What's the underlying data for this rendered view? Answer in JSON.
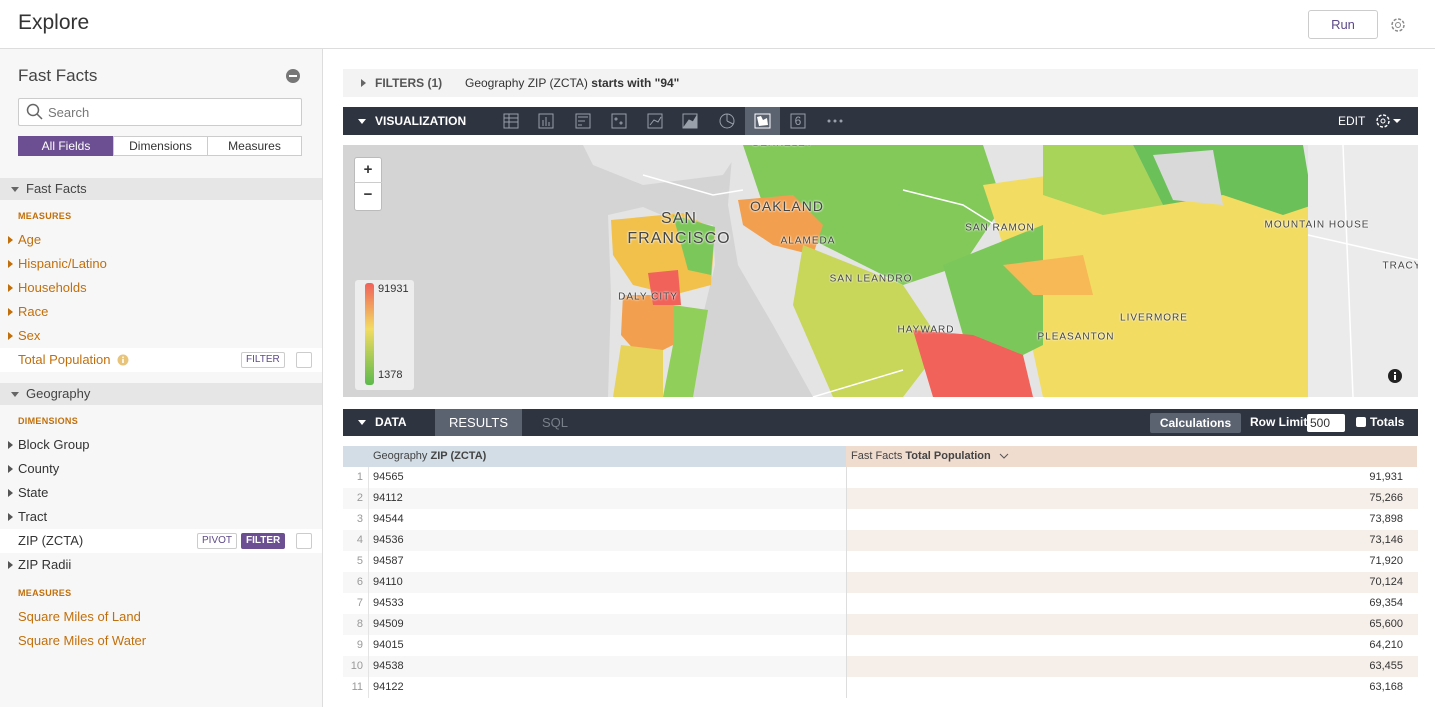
{
  "header": {
    "title": "Explore",
    "run": "Run"
  },
  "sidebar": {
    "title": "Fast Facts",
    "search": "Search",
    "tabs": [
      "All Fields",
      "Dimensions",
      "Measures"
    ],
    "groups": [
      {
        "name": "Fast Facts",
        "sections": [
          {
            "label": "MEASURES",
            "kind": "measure",
            "fields": [
              {
                "name": "Age",
                "expandable": true
              },
              {
                "name": "Hispanic/Latino",
                "expandable": true
              },
              {
                "name": "Households",
                "expandable": true
              },
              {
                "name": "Race",
                "expandable": true
              },
              {
                "name": "Sex",
                "expandable": true
              },
              {
                "name": "Total Population",
                "info": true,
                "buttons": [
                  {
                    "label": "FILTER",
                    "active": false
                  }
                ]
              }
            ]
          }
        ]
      },
      {
        "name": "Geography",
        "sections": [
          {
            "label": "DIMENSIONS",
            "kind": "dimension",
            "fields": [
              {
                "name": "Block Group",
                "expandable": true
              },
              {
                "name": "County",
                "expandable": true
              },
              {
                "name": "State",
                "expandable": true
              },
              {
                "name": "Tract",
                "expandable": true
              },
              {
                "name": "ZIP (ZCTA)",
                "buttons": [
                  {
                    "label": "PIVOT",
                    "active": false
                  },
                  {
                    "label": "FILTER",
                    "active": true
                  }
                ]
              },
              {
                "name": "ZIP Radii",
                "expandable": true
              }
            ]
          },
          {
            "label": "MEASURES",
            "kind": "measure",
            "fields": [
              {
                "name": "Square Miles of Land"
              },
              {
                "name": "Square Miles of Water"
              }
            ]
          }
        ]
      }
    ]
  },
  "filters": {
    "label": "FILTERS (1)",
    "field": "Geography ZIP (ZCTA)",
    "condition": "starts with \"94\""
  },
  "visualization": {
    "label": "VISUALIZATION",
    "single_value_icon": "6",
    "edit": "EDIT"
  },
  "map": {
    "places": [
      "BERKELEY",
      "SAN FRANCISCO",
      "OAKLAND",
      "ALAMEDA",
      "SAN LEANDRO",
      "DALY CITY",
      "SAN RAMON",
      "HAYWARD",
      "PLEASANTON",
      "LIVERMORE",
      "MOUNTAIN HOUSE",
      "TRACY"
    ],
    "zoom_in": "+",
    "zoom_out": "−",
    "legend": {
      "max": 91931,
      "min": 1378
    }
  },
  "data_bar": {
    "label": "DATA",
    "tabs": [
      "RESULTS",
      "SQL"
    ],
    "calculations": "Calculations",
    "row_limit_label": "Row Limit",
    "row_limit": 500,
    "totals": "Totals"
  },
  "table": {
    "columns": [
      {
        "view": "Geography",
        "field": "ZIP (ZCTA)"
      },
      {
        "view": "Fast Facts",
        "field": "Total Population"
      }
    ],
    "rows": [
      {
        "n": 1,
        "zip": "94565",
        "pop": "91,931"
      },
      {
        "n": 2,
        "zip": "94112",
        "pop": "75,266"
      },
      {
        "n": 3,
        "zip": "94544",
        "pop": "73,898"
      },
      {
        "n": 4,
        "zip": "94536",
        "pop": "73,146"
      },
      {
        "n": 5,
        "zip": "94587",
        "pop": "71,920"
      },
      {
        "n": 6,
        "zip": "94110",
        "pop": "70,124"
      },
      {
        "n": 7,
        "zip": "94533",
        "pop": "69,354"
      },
      {
        "n": 8,
        "zip": "94509",
        "pop": "65,600"
      },
      {
        "n": 9,
        "zip": "94015",
        "pop": "64,210"
      },
      {
        "n": 10,
        "zip": "94538",
        "pop": "63,455"
      },
      {
        "n": 11,
        "zip": "94122",
        "pop": "63,168"
      }
    ]
  }
}
